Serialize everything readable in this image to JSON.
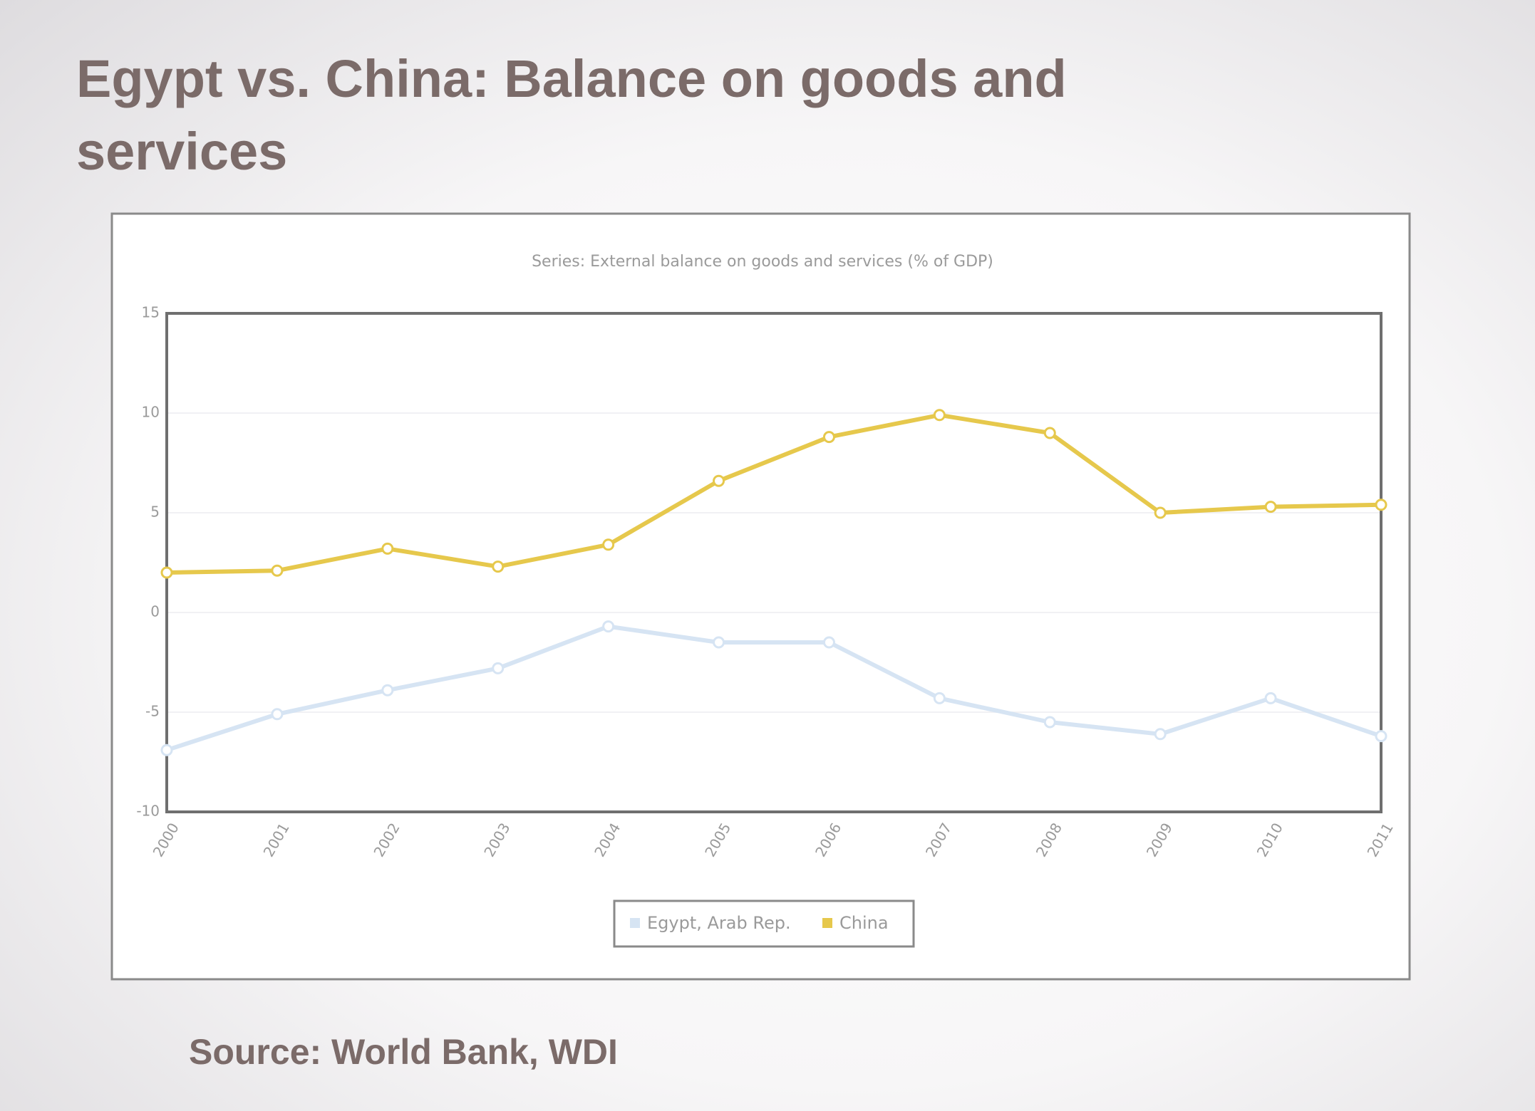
{
  "title": "Egypt vs. China: Balance on goods and services",
  "source": "Source: World Bank, WDI",
  "chart_data": {
    "type": "line",
    "subtitle": "Series: External balance on goods and services (% of GDP)",
    "categories": [
      "2000",
      "2001",
      "2002",
      "2003",
      "2004",
      "2005",
      "2006",
      "2007",
      "2008",
      "2009",
      "2010",
      "2011"
    ],
    "series": [
      {
        "name": "Egypt, Arab Rep.",
        "color": "#d6e4f3",
        "values": [
          -6.9,
          -5.1,
          -3.9,
          -2.8,
          -0.7,
          -1.5,
          -1.5,
          -4.3,
          -5.5,
          -6.1,
          -4.3,
          -6.2
        ]
      },
      {
        "name": "China",
        "color": "#e6c84c",
        "values": [
          2.0,
          2.1,
          3.2,
          2.3,
          3.4,
          6.6,
          8.8,
          9.9,
          9.0,
          5.0,
          5.3,
          5.4
        ]
      }
    ],
    "ylim": [
      -10,
      15
    ],
    "yticks": [
      -10,
      -5,
      0,
      5,
      10,
      15
    ],
    "grid": true
  }
}
